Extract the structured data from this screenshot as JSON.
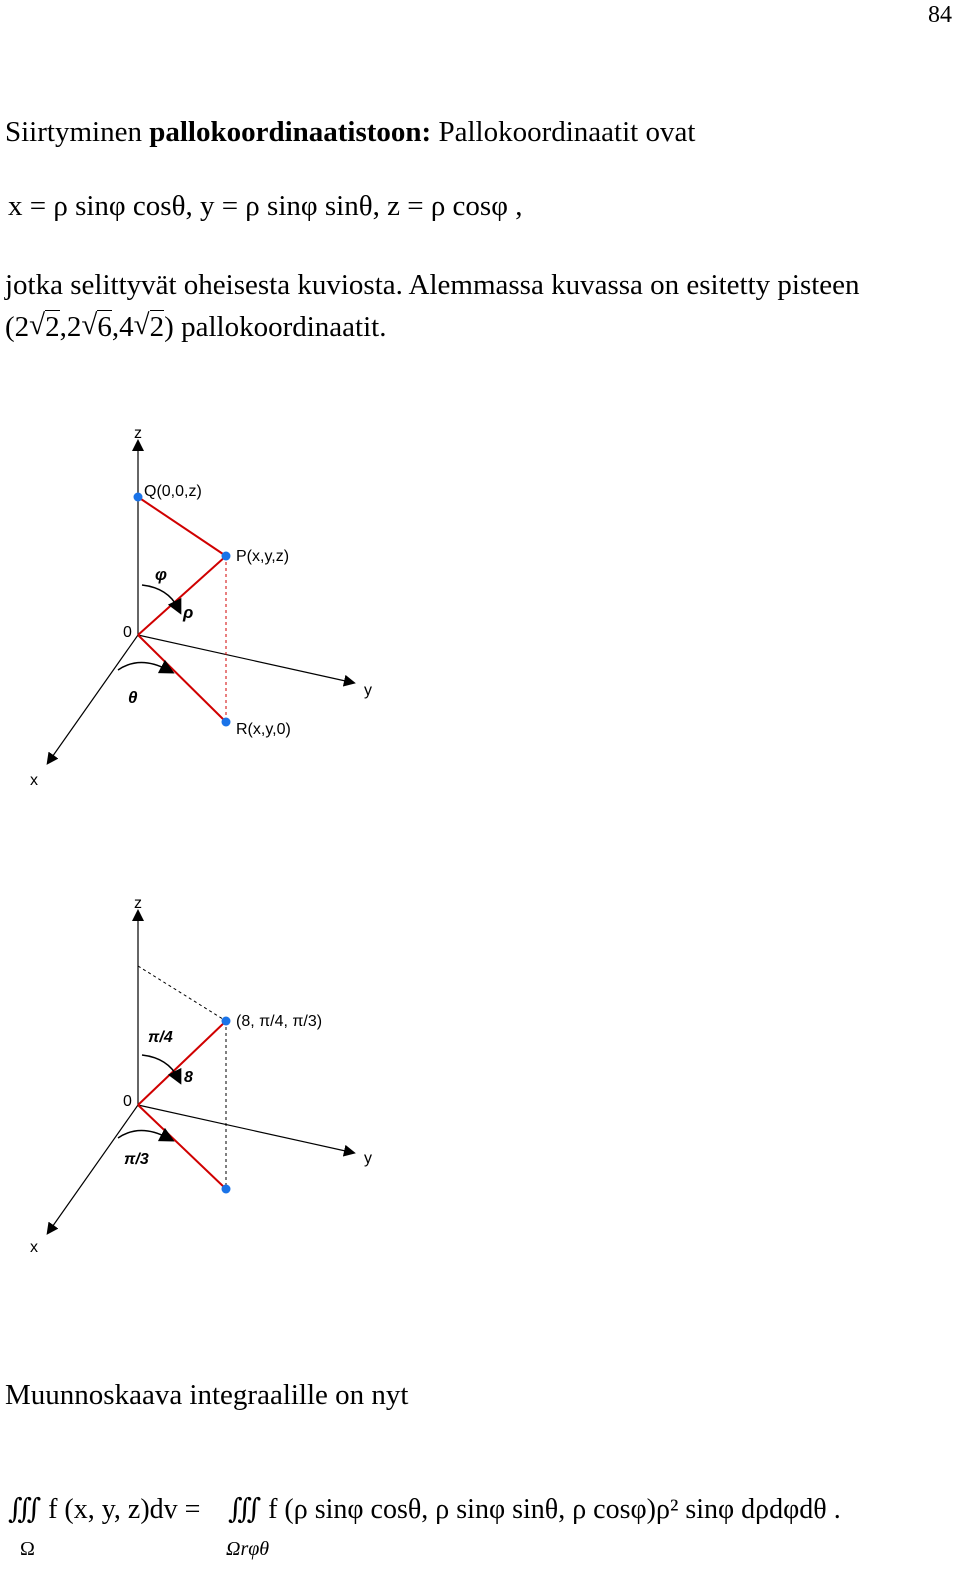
{
  "page_number": "84",
  "intro": {
    "text_before": "Siirtyminen ",
    "bold": "pallokoordinaatistoon:",
    "text_after": " Pallokoordinaatit ovat"
  },
  "formula_line": "x = ρ sinφ cosθ,  y = ρ sinφ sinθ,  z = ρ cosφ ,",
  "explanation_line1": "jotka selittyvät oheisesta kuviosta. Alemmassa kuvassa on esitetty pisteen",
  "explanation_line2": {
    "open": "(2",
    "r1": "2",
    "mid1": ",2",
    "r2": "6",
    "mid2": ",4",
    "r3": "2",
    "close": ")",
    "tail": " pallokoordinaatit."
  },
  "figure1": {
    "labels": {
      "z": "z",
      "y": "y",
      "x": "x",
      "origin": "0",
      "q": "Q(0,0,z)",
      "p": "P(x,y,z)",
      "r": "R(x,y,0)",
      "phi": "φ",
      "rho": "ρ",
      "theta": "θ"
    },
    "colors": {
      "line": "#d00000",
      "point": "#1a73e8",
      "axis": "#000000"
    }
  },
  "figure2": {
    "labels": {
      "z": "z",
      "y": "y",
      "x": "x",
      "origin": "0",
      "p": "(8, π/4, π/3)",
      "phi": "π/4",
      "rho": "8",
      "theta": "π/3"
    }
  },
  "transform_heading": "Muunnoskaava integraalille on nyt",
  "final_formula": {
    "lhs": "∭ f (x, y, z)dv =",
    "lhs_sub": "Ω",
    "rhs": "∭ f (ρ sinφ cosθ, ρ sinφ sinθ, ρ cosφ)ρ² sinφ dρdφdθ .",
    "rhs_sub": "Ωrφθ"
  }
}
